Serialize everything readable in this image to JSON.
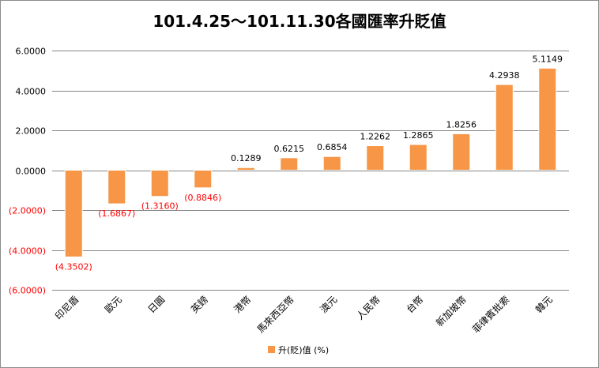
{
  "chart_data": {
    "type": "bar",
    "title": "101.4.25～101.11.30各國匯率升貶值",
    "categories": [
      "印尼盾",
      "歐元",
      "日圓",
      "英鎊",
      "港幣",
      "馬來西亞幣",
      "澳元",
      "人民幣",
      "台幣",
      "新加坡幣",
      "菲律賓批索",
      "韓元"
    ],
    "series": [
      {
        "name": "升(貶)值 (%)",
        "values": [
          -4.3502,
          -1.6867,
          -1.316,
          -0.8846,
          0.1289,
          0.6215,
          0.6854,
          1.2262,
          1.2865,
          1.8256,
          4.2938,
          5.1149
        ],
        "labels": [
          "(4.3502)",
          "(1.6867)",
          "(1.3160)",
          "(0.8846)",
          "0.1289",
          "0.6215",
          "0.6854",
          "1.2262",
          "1.2865",
          "1.8256",
          "4.2938",
          "5.1149"
        ]
      }
    ],
    "ylim": [
      -6,
      6
    ],
    "yticks": [
      6,
      4,
      2,
      0,
      -2,
      -4,
      -6
    ],
    "ytick_labels": [
      "6.0000",
      "4.0000",
      "2.0000",
      "0.0000",
      "(2.0000)",
      "(4.0000)",
      "(6.0000)"
    ],
    "xlabel": "",
    "ylabel": "",
    "grid": true,
    "legend_position": "bottom",
    "colors": {
      "bar_fill": "#F79646",
      "bar_stroke": "#FFFFFF",
      "gridline": "#868686",
      "positive_text": "#000000",
      "negative_text": "#FF0000"
    }
  }
}
